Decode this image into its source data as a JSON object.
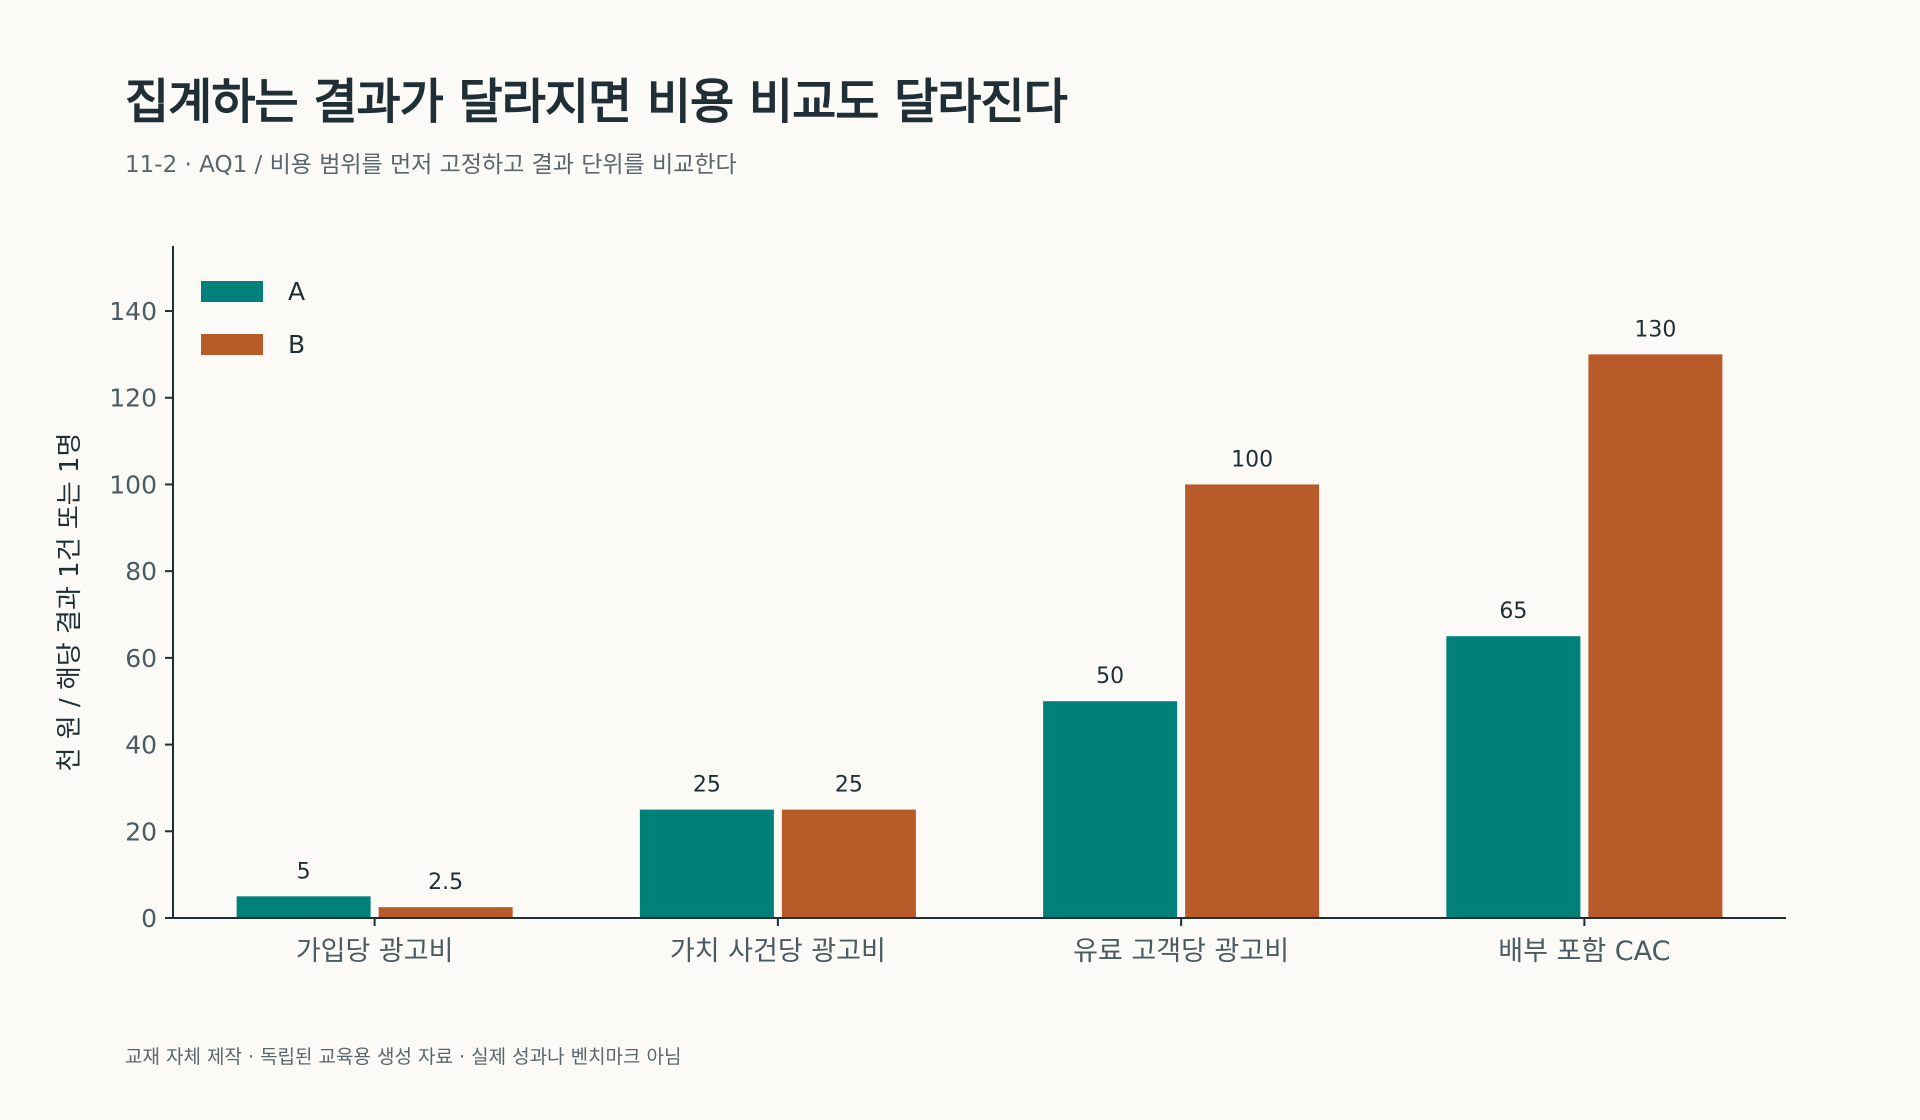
{
  "header": {
    "title": "집계하는 결과가 달라지면 비용 비교도 달라진다",
    "subtitle": "11-2 · AQ1 / 비용 범위를 먼저 고정하고 결과 단위를 비교한다"
  },
  "footer": {
    "note": "교재 자체 제작 · 독립된 교육용 생성 자료 · 실제 성과나 벤치마크 아님"
  },
  "chart_data": {
    "type": "bar",
    "title": "",
    "xlabel": "",
    "ylabel": "천 원 / 해당 결과 1건 또는 1명",
    "categories": [
      "가입당 광고비",
      "가치 사건당 광고비",
      "유료 고객당 광고비",
      "배부 포함 CAC"
    ],
    "series": [
      {
        "name": "A",
        "color": "#00807a",
        "values": [
          5,
          25,
          50,
          65
        ],
        "labels": [
          "5",
          "25",
          "50",
          "65"
        ]
      },
      {
        "name": "B",
        "color": "#b85b28",
        "values": [
          2.5,
          25,
          100,
          130
        ],
        "labels": [
          "2.5",
          "25",
          "100",
          "130"
        ]
      }
    ],
    "ylim": [
      0,
      155
    ],
    "yticks": [
      0,
      20,
      40,
      60,
      80,
      100,
      120,
      140
    ],
    "grid": false,
    "legend_position": "top-left"
  }
}
